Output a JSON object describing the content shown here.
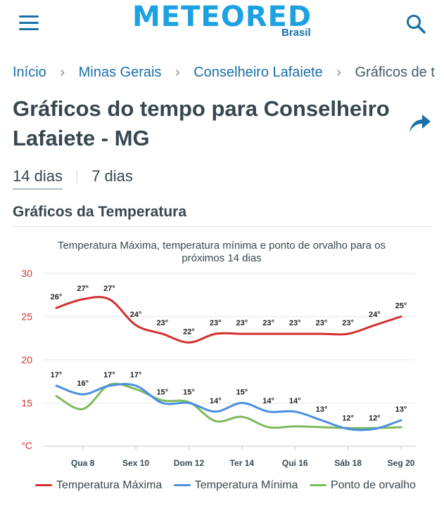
{
  "header": {
    "logo_text": "METEORED",
    "logo_sub": "Brasil"
  },
  "breadcrumb": {
    "items": [
      "Início",
      "Minas Gerais",
      "Conselheiro Lafaiete",
      "Gráficos de te"
    ]
  },
  "page": {
    "title": "Gráficos do tempo para Conselheiro Lafaiete - MG"
  },
  "tabs": [
    "14 dias",
    "7 dias"
  ],
  "section": {
    "title": "Gráficos da Temperatura"
  },
  "colors": {
    "max": "#d32f2f",
    "min": "#4a8fe0",
    "dew": "#7cba5c",
    "accent": "#1a6fa8"
  },
  "chart_data": {
    "type": "line",
    "title": "Temperatura Máxima, temperatura mínima e ponto de orvalho para os próximos 14 dias",
    "ylabel": "°C",
    "ylim": [
      10,
      30
    ],
    "y_ticks": [
      15,
      20,
      25,
      30
    ],
    "x_ticks": [
      "Qua 8",
      "Sex 10",
      "Dom 12",
      "Ter 14",
      "Qui 16",
      "Sáb 18",
      "Seg 20"
    ],
    "x_days": [
      7,
      8,
      9,
      10,
      11,
      12,
      13,
      14,
      15,
      16,
      17,
      18,
      19,
      20
    ],
    "grid": true,
    "legend_position": "bottom",
    "series": [
      {
        "name": "Temperatura Máxima",
        "color": "#d32f2f",
        "values": [
          26,
          27,
          27,
          24,
          23,
          22,
          23,
          23,
          23,
          23,
          23,
          23,
          24,
          25
        ],
        "labels": [
          "26°",
          "27°",
          "27°",
          "24°",
          "23°",
          "22°",
          "23°",
          "23°",
          "23°",
          "23°",
          "23°",
          "23°",
          "24°",
          "25°"
        ]
      },
      {
        "name": "Temperatura Mínima",
        "color": "#4a8fe0",
        "values": [
          17,
          16,
          17,
          17,
          15,
          15,
          14,
          15,
          14,
          14,
          13,
          12,
          12,
          13
        ],
        "labels": [
          "17°",
          "16°",
          "17°",
          "17°",
          "15°",
          "15°",
          "14°",
          "15°",
          "14°",
          "14°",
          "13°",
          "12°",
          "12°",
          "13°"
        ]
      },
      {
        "name": "Ponto de orvalho",
        "color": "#7cba5c",
        "values": [
          15.8,
          14.3,
          17.1,
          16.6,
          15.3,
          15.1,
          12.9,
          13.4,
          12.2,
          12.3,
          12.2,
          12.1,
          12.1,
          12.2
        ]
      }
    ]
  }
}
